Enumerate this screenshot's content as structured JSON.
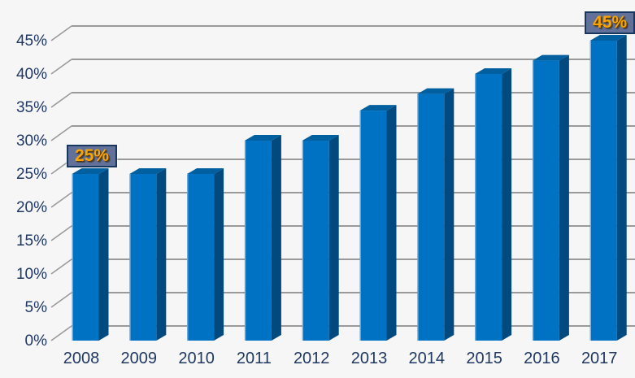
{
  "chart_data": {
    "type": "bar",
    "style": "3d-column",
    "title": "",
    "categories": [
      "2008",
      "2009",
      "2010",
      "2011",
      "2012",
      "2013",
      "2014",
      "2015",
      "2016",
      "2017"
    ],
    "values": [
      25,
      25,
      25,
      30,
      30,
      34.5,
      37,
      40,
      42,
      45
    ],
    "unit": "%",
    "ylim": [
      0,
      45
    ],
    "y_tick_step": 5,
    "y_tick_labels": [
      "0%",
      "5%",
      "10%",
      "15%",
      "20%",
      "25%",
      "30%",
      "35%",
      "40%",
      "45%"
    ],
    "grid": true,
    "legend": false,
    "xlabel": "",
    "ylabel": "",
    "annotations": [
      {
        "category": "2008",
        "label": "25%"
      },
      {
        "category": "2017",
        "label": "45%"
      }
    ]
  },
  "colors": {
    "background": "#F6F6F6",
    "bar_front": "#0072C3",
    "bar_side": "#014A80",
    "bar_top": "#00609F",
    "bar_edge_highlight": "#AECBE8",
    "gridline": "#9A9A9A",
    "axis_text": "#1F3864",
    "callout_background": "#61719A",
    "callout_border": "#17375E",
    "callout_text": "#F9A400"
  }
}
